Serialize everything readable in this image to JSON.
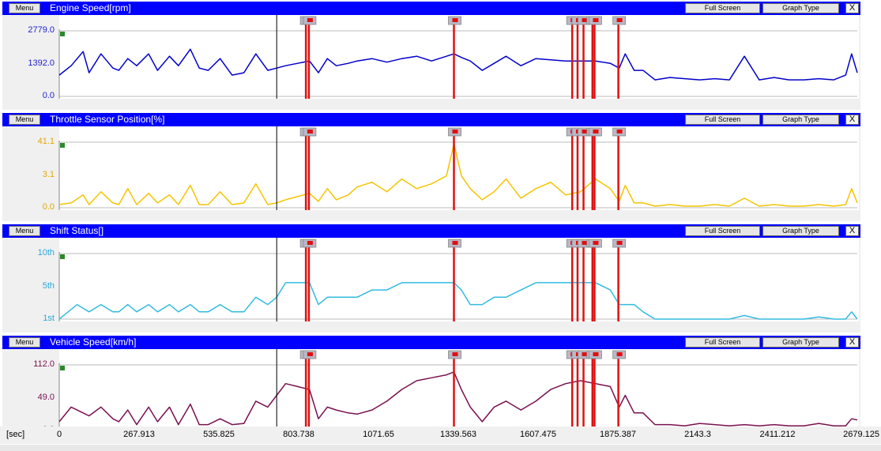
{
  "buttons": {
    "menu": "Menu",
    "full_screen": "Full Screen",
    "graph_type": "Graph Type",
    "close": "X"
  },
  "x_axis": {
    "unit": "[sec]",
    "range": [
      0,
      2679.125
    ],
    "ticks": [
      "0",
      "267.913",
      "535.825",
      "803.738",
      "1071.65",
      "1339.563",
      "1607.475",
      "1875.387",
      "2143.3",
      "2411.212",
      "2679.125"
    ]
  },
  "cursor_sec": 730,
  "event_markers_sec": [
    828,
    838,
    1325,
    1722,
    1740,
    1760,
    1790,
    1797,
    1877
  ],
  "colors": {
    "title_bar": "#0000ff",
    "marker": "#e01010",
    "engine": "#0000cc",
    "throttle": "#f5c400",
    "shift": "#33bbe0",
    "speed": "#7a1050"
  },
  "panels": [
    {
      "title": "Engine Speed[rpm]",
      "y_labels": [
        "2779.0",
        "1392.0",
        "0.0"
      ],
      "y_range": [
        0,
        2779
      ],
      "label_color": "#1f1fd0"
    },
    {
      "title": "Throttle Sensor Position[%]",
      "y_labels": [
        "41.1",
        "3.1",
        "0.0"
      ],
      "y_range": [
        0,
        41.1
      ],
      "label_color": "#e0a800"
    },
    {
      "title": "Shift Status[]",
      "y_labels": [
        "10th",
        "5th",
        "1st"
      ],
      "y_range": [
        1,
        10
      ],
      "label_color": "#2aa8d8"
    },
    {
      "title": "Vehicle Speed[km/h]",
      "y_labels": [
        "112.0",
        "49.0",
        "0.0"
      ],
      "y_range": [
        0,
        112
      ],
      "label_color": "#7a1050"
    }
  ],
  "chart_data": [
    {
      "type": "line",
      "title": "Engine Speed[rpm]",
      "ylim": [
        0,
        2779
      ],
      "x": [
        0,
        40,
        80,
        100,
        140,
        180,
        200,
        230,
        260,
        300,
        330,
        370,
        400,
        440,
        470,
        500,
        540,
        580,
        620,
        660,
        700,
        730,
        760,
        800,
        840,
        870,
        900,
        930,
        970,
        1000,
        1050,
        1100,
        1150,
        1200,
        1250,
        1300,
        1325,
        1350,
        1380,
        1420,
        1460,
        1500,
        1550,
        1600,
        1650,
        1700,
        1750,
        1800,
        1850,
        1880,
        1900,
        1930,
        1960,
        2000,
        2050,
        2100,
        2150,
        2200,
        2250,
        2300,
        2350,
        2400,
        2450,
        2500,
        2550,
        2600,
        2640,
        2660,
        2679
      ],
      "values": [
        900,
        1300,
        1900,
        1000,
        1800,
        1200,
        1100,
        1600,
        1300,
        1800,
        1100,
        1700,
        1300,
        2000,
        1200,
        1100,
        1600,
        900,
        1000,
        1800,
        1100,
        1200,
        1300,
        1400,
        1500,
        1000,
        1600,
        1300,
        1400,
        1500,
        1600,
        1450,
        1600,
        1700,
        1500,
        1700,
        1800,
        1650,
        1500,
        1100,
        1400,
        1700,
        1300,
        1600,
        1550,
        1500,
        1500,
        1500,
        1400,
        1200,
        1800,
        1100,
        1100,
        700,
        800,
        750,
        700,
        750,
        700,
        1700,
        700,
        800,
        700,
        700,
        750,
        700,
        900,
        1800,
        1000
      ]
    },
    {
      "type": "line",
      "title": "Throttle Sensor Position[%]",
      "ylim": [
        0,
        41.1
      ],
      "x": [
        0,
        40,
        80,
        100,
        140,
        180,
        200,
        230,
        260,
        300,
        330,
        370,
        400,
        440,
        470,
        500,
        540,
        580,
        620,
        660,
        700,
        730,
        760,
        800,
        840,
        870,
        900,
        930,
        970,
        1000,
        1050,
        1100,
        1150,
        1200,
        1250,
        1300,
        1325,
        1350,
        1380,
        1420,
        1460,
        1500,
        1550,
        1600,
        1650,
        1700,
        1750,
        1800,
        1850,
        1880,
        1900,
        1930,
        1960,
        2000,
        2050,
        2100,
        2150,
        2200,
        2250,
        2300,
        2350,
        2400,
        2450,
        2500,
        2550,
        2600,
        2640,
        2660,
        2679
      ],
      "values": [
        2,
        3,
        8,
        2,
        10,
        3,
        2,
        12,
        2,
        9,
        3,
        8,
        2,
        14,
        2,
        2,
        10,
        2,
        3,
        15,
        2,
        3,
        5,
        7,
        9,
        4,
        12,
        5,
        8,
        13,
        16,
        10,
        18,
        12,
        15,
        20,
        40,
        20,
        12,
        5,
        10,
        18,
        6,
        12,
        16,
        8,
        10,
        18,
        12,
        4,
        14,
        3,
        3,
        1,
        2,
        1,
        1,
        2,
        1,
        6,
        1,
        2,
        1,
        1,
        2,
        1,
        2,
        12,
        3
      ]
    },
    {
      "type": "line",
      "title": "Shift Status[]",
      "ylim": [
        1,
        10
      ],
      "x": [
        0,
        30,
        60,
        100,
        140,
        180,
        200,
        230,
        260,
        300,
        330,
        370,
        400,
        440,
        470,
        500,
        540,
        580,
        620,
        660,
        700,
        730,
        760,
        800,
        840,
        870,
        900,
        930,
        970,
        1000,
        1050,
        1100,
        1150,
        1200,
        1250,
        1300,
        1325,
        1350,
        1380,
        1420,
        1460,
        1500,
        1550,
        1600,
        1650,
        1700,
        1750,
        1800,
        1850,
        1880,
        1900,
        1930,
        1960,
        2000,
        2050,
        2100,
        2150,
        2200,
        2250,
        2300,
        2350,
        2400,
        2450,
        2500,
        2550,
        2600,
        2640,
        2660,
        2679
      ],
      "values": [
        1,
        2,
        3,
        2,
        3,
        2,
        2,
        3,
        2,
        3,
        2,
        3,
        2,
        3,
        2,
        2,
        3,
        2,
        2,
        4,
        3,
        4,
        6,
        6,
        6,
        3,
        4,
        4,
        4,
        4,
        5,
        5,
        6,
        6,
        6,
        6,
        6,
        5,
        3,
        3,
        4,
        4,
        5,
        6,
        6,
        6,
        6,
        6,
        5,
        3,
        3,
        3,
        2,
        1,
        1,
        1,
        1,
        1,
        1,
        1.5,
        1,
        1,
        1,
        1,
        1.3,
        1,
        1,
        2,
        1
      ]
    },
    {
      "type": "line",
      "title": "Vehicle Speed[km/h]",
      "ylim": [
        0,
        112
      ],
      "x": [
        0,
        40,
        80,
        100,
        140,
        180,
        200,
        230,
        260,
        300,
        330,
        370,
        400,
        440,
        470,
        500,
        540,
        580,
        620,
        660,
        700,
        730,
        760,
        800,
        840,
        870,
        900,
        930,
        970,
        1000,
        1050,
        1100,
        1150,
        1200,
        1250,
        1300,
        1325,
        1350,
        1380,
        1420,
        1460,
        1500,
        1550,
        1600,
        1650,
        1700,
        1750,
        1800,
        1850,
        1880,
        1900,
        1930,
        1960,
        2000,
        2050,
        2100,
        2150,
        2200,
        2250,
        2300,
        2350,
        2400,
        2450,
        2500,
        2550,
        2600,
        2640,
        2660,
        2679
      ],
      "values": [
        15,
        40,
        30,
        25,
        40,
        20,
        15,
        35,
        10,
        40,
        15,
        40,
        10,
        45,
        10,
        10,
        20,
        10,
        12,
        50,
        40,
        60,
        80,
        75,
        70,
        20,
        40,
        35,
        30,
        28,
        35,
        50,
        70,
        85,
        90,
        95,
        100,
        70,
        40,
        15,
        40,
        50,
        35,
        50,
        70,
        80,
        85,
        80,
        75,
        40,
        60,
        30,
        30,
        10,
        10,
        8,
        12,
        10,
        8,
        10,
        8,
        10,
        8,
        8,
        12,
        8,
        8,
        20,
        18
      ]
    }
  ]
}
